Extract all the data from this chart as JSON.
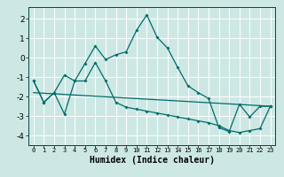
{
  "title": "",
  "xlabel": "Humidex (Indice chaleur)",
  "background_color": "#cde8e4",
  "grid_color": "#ffffff",
  "line_color": "#006b6b",
  "xlim": [
    -0.5,
    23.5
  ],
  "ylim": [
    -4.5,
    2.6
  ],
  "xticks": [
    0,
    1,
    2,
    3,
    4,
    5,
    6,
    7,
    8,
    9,
    10,
    11,
    12,
    13,
    14,
    15,
    16,
    17,
    18,
    19,
    20,
    21,
    22,
    23
  ],
  "yticks": [
    -4,
    -3,
    -2,
    -1,
    0,
    1,
    2
  ],
  "series1_x": [
    0,
    1,
    2,
    3,
    4,
    5,
    6,
    7,
    8,
    9,
    10,
    11,
    12,
    13,
    14,
    15,
    16,
    17,
    18,
    19,
    20,
    21,
    22,
    23
  ],
  "series1_y": [
    -1.2,
    -2.3,
    -1.8,
    -0.9,
    -1.2,
    -0.3,
    0.6,
    -0.1,
    0.15,
    0.3,
    1.4,
    2.2,
    1.05,
    0.5,
    -0.5,
    -1.45,
    -1.8,
    -2.1,
    -3.6,
    -3.8,
    -2.4,
    -3.05,
    -2.5,
    -2.5
  ],
  "series2_x": [
    0,
    1,
    2,
    3,
    4,
    5,
    6,
    7,
    8,
    9,
    10,
    11,
    12,
    13,
    14,
    15,
    16,
    17,
    18,
    19,
    20,
    21,
    22,
    23
  ],
  "series2_y": [
    -1.2,
    -2.3,
    -1.8,
    -2.9,
    -1.2,
    -1.2,
    -0.25,
    -1.2,
    -2.3,
    -2.55,
    -2.65,
    -2.75,
    -2.85,
    -2.95,
    -3.05,
    -3.15,
    -3.25,
    -3.35,
    -3.5,
    -3.75,
    -3.85,
    -3.75,
    -3.65,
    -2.5
  ],
  "series3_x": [
    0,
    23
  ],
  "series3_y": [
    -1.8,
    -2.5
  ]
}
